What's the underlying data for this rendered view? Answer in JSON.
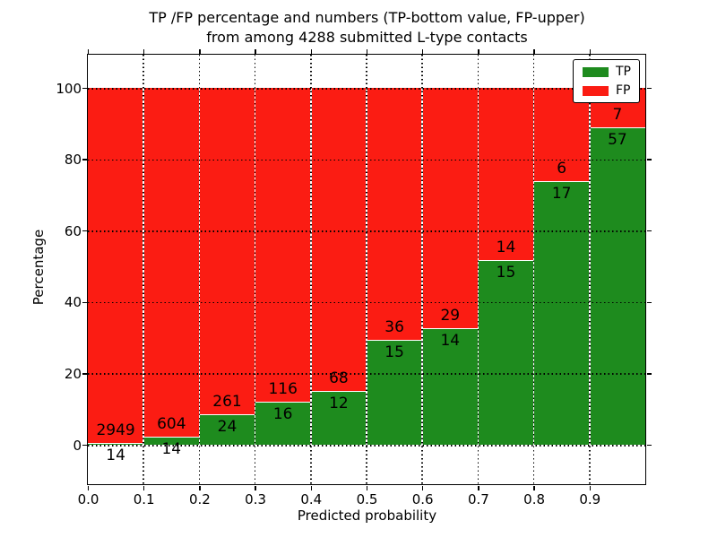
{
  "figure": {
    "title_line1": "TP /FP percentage and numbers (TP-bottom value, FP-upper)",
    "title_line2": "from among 4288 submitted L-type contacts",
    "xlabel": "Predicted probability",
    "ylabel": "Percentage"
  },
  "chart_data": {
    "type": "bar",
    "stacked": true,
    "normalized_to_percent": true,
    "title": "TP /FP percentage and numbers (TP-bottom value, FP-upper) from among 4288 submitted L-type contacts",
    "xlabel": "Predicted probability",
    "ylabel": "Percentage",
    "total_contacts": 4288,
    "bin_edges": [
      0.0,
      0.1,
      0.2,
      0.3,
      0.4,
      0.5,
      0.6,
      0.7,
      0.8,
      0.9,
      1.0
    ],
    "categories": [
      "0.0-0.1",
      "0.1-0.2",
      "0.2-0.3",
      "0.3-0.4",
      "0.4-0.5",
      "0.5-0.6",
      "0.6-0.7",
      "0.7-0.8",
      "0.8-0.9",
      "0.9-1.0"
    ],
    "series": [
      {
        "name": "TP",
        "color": "#1e8b1e",
        "counts": [
          14,
          14,
          24,
          16,
          12,
          15,
          14,
          15,
          17,
          57
        ],
        "percent": [
          0.47,
          2.27,
          8.42,
          12.12,
          15.0,
          29.41,
          32.56,
          51.72,
          73.91,
          89.06
        ]
      },
      {
        "name": "FP",
        "color": "#fb1c13",
        "counts": [
          2949,
          604,
          261,
          116,
          68,
          36,
          29,
          14,
          6,
          7
        ],
        "percent": [
          99.53,
          97.73,
          91.58,
          87.88,
          85.0,
          70.59,
          67.44,
          48.28,
          26.09,
          10.94
        ]
      }
    ],
    "xticks": [
      "0.0",
      "0.1",
      "0.2",
      "0.3",
      "0.4",
      "0.5",
      "0.6",
      "0.7",
      "0.8",
      "0.9"
    ],
    "yticks": [
      0,
      20,
      40,
      60,
      80,
      100
    ],
    "xlim": [
      0.0,
      1.0
    ],
    "ylim": [
      -11,
      109
    ],
    "grid": "dotted",
    "legend_position": "upper right",
    "bar_edge_color": "#ffffff",
    "label_color": "#000000"
  }
}
